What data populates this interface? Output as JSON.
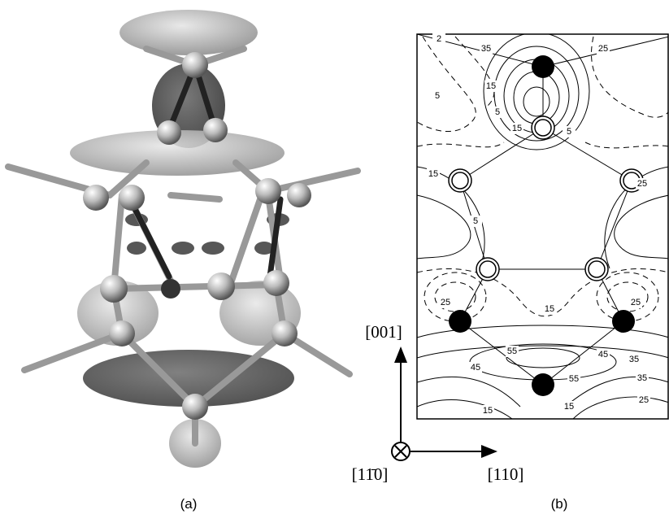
{
  "panels": [
    {
      "label": "(a)"
    },
    {
      "label": "(b)",
      "axes": {
        "up": "[001]",
        "into": "[11̄0]",
        "right": "[110]"
      },
      "contour_labels": [
        "2",
        "35",
        "25",
        "15",
        "5",
        "5",
        "15",
        "5",
        "15",
        "25",
        "5",
        "25",
        "15",
        "25",
        "55",
        "45",
        "55",
        "35",
        "45",
        "35",
        "25",
        "15",
        "15"
      ]
    }
  ]
}
